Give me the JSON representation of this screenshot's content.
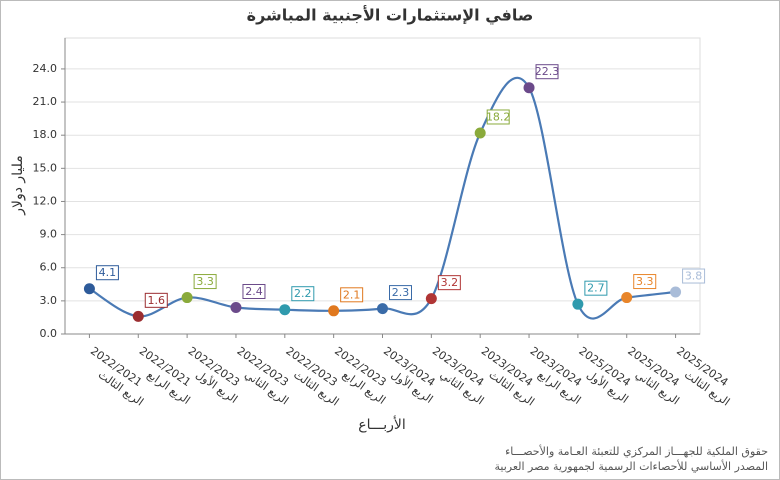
{
  "chart_data": {
    "type": "line",
    "title": "صافي الإستثمارات الأجنبية المباشرة",
    "y_label": "مليار دولار",
    "x_label": "الأربـــاع",
    "footer": [
      "حقوق الملكية للجهـــاز المركزي للتعبئة العـامة والأحصـــاء",
      "المصدر الأساسي للأحصاءات الرسمية لجمهورية مصر العربية"
    ],
    "categories": [
      [
        "2022/2021",
        "الربع الثالث"
      ],
      [
        "2022/2021",
        "الربع الرابع"
      ],
      [
        "2022/2023",
        "الربع الأول"
      ],
      [
        "2022/2023",
        "الربع الثاني"
      ],
      [
        "2022/2023",
        "الربع الثالث"
      ],
      [
        "2022/2023",
        "الربع الرابع"
      ],
      [
        "2023/2024",
        "الربع الأول"
      ],
      [
        "2023/2024",
        "الربع الثاني"
      ],
      [
        "2023/2024",
        "الربع الثالث"
      ],
      [
        "2023/2024",
        "الربع الرابع"
      ],
      [
        "2025/2024",
        "الربع الأول"
      ],
      [
        "2025/2024",
        "الربع الثاني"
      ],
      [
        "2025/2024",
        "الربع الثالث"
      ]
    ],
    "values": [
      4.1,
      1.6,
      3.3,
      2.4,
      2.2,
      2.1,
      2.3,
      3.2,
      18.2,
      22.3,
      2.7,
      3.3,
      3.8
    ],
    "line_color": "#4a7ab5",
    "point_colors": [
      "#2e5b9a",
      "#9b2d30",
      "#8aaa3b",
      "#6b4a8a",
      "#2f9aad",
      "#e0781e",
      "#3a6ba8",
      "#b03535",
      "#8aaa3b",
      "#6b4a8a",
      "#2f9aad",
      "#e8852a",
      "#a9bcd8"
    ],
    "ylim": [
      0,
      26.8
    ],
    "yticks": [
      {
        "value": 0,
        "label": "0.0"
      },
      {
        "value": 3,
        "label": "3.0"
      },
      {
        "value": 6,
        "label": "6.0"
      },
      {
        "value": 9,
        "label": "9.0"
      },
      {
        "value": 12,
        "label": "12.0"
      },
      {
        "value": 15,
        "label": "15.0"
      },
      {
        "value": 18,
        "label": "18.0"
      },
      {
        "value": 21,
        "label": "21.0"
      },
      {
        "value": 24,
        "label": "24.0"
      }
    ],
    "grid": true
  }
}
